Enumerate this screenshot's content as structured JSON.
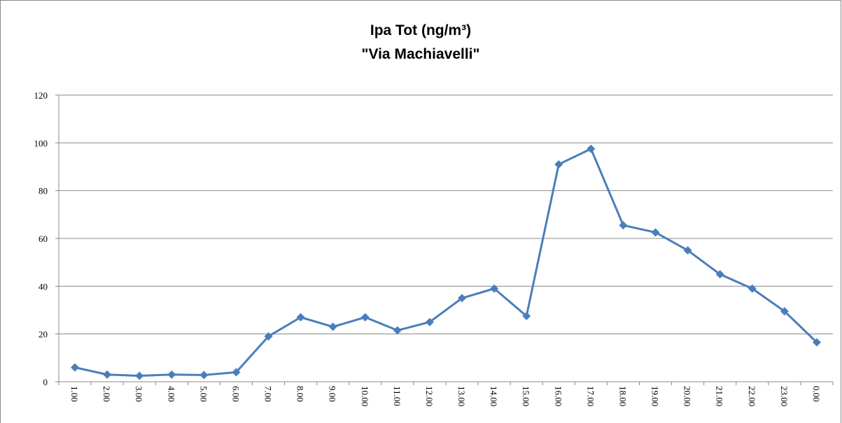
{
  "chart_data": {
    "type": "line",
    "title": "Ipa Tot (ng/m³)",
    "subtitle": "\"Via Machiavelli\"",
    "categories": [
      "1.00",
      "2.00",
      "3.00",
      "4.00",
      "5.00",
      "6.00",
      "7.00",
      "8.00",
      "9.00",
      "10.00",
      "11.00",
      "12.00",
      "13.00",
      "14.00",
      "15.00",
      "16.00",
      "17.00",
      "18.00",
      "19.00",
      "20.00",
      "21.00",
      "22.00",
      "23.00",
      "0.00"
    ],
    "series": [
      {
        "color": "#4a7ebb",
        "values": [
          6,
          3,
          2.5,
          3,
          2.8,
          4,
          19,
          27,
          23,
          27,
          21.5,
          25,
          35,
          39,
          27.5,
          91,
          97.5,
          65.5,
          62.5,
          55,
          45,
          39,
          29.5,
          16.5
        ]
      }
    ],
    "ylim": [
      0,
      120
    ],
    "yticks": [
      0,
      20,
      40,
      60,
      80,
      100,
      120
    ],
    "grid": true
  }
}
